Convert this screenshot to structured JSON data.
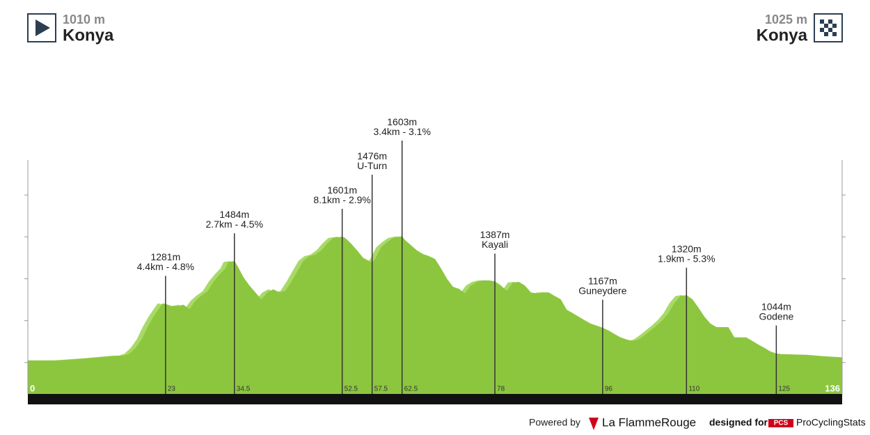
{
  "header": {
    "start": {
      "altitude": "1010 m",
      "place": "Konya"
    },
    "finish": {
      "altitude": "1025 m",
      "place": "Konya"
    }
  },
  "footer": {
    "powered_by": "Powered by",
    "brand": "La FlammeRouge",
    "designed_for": "designed for",
    "pcs_logo": "PCS",
    "pcs": "ProCyclingStats"
  },
  "chart_data": {
    "type": "area",
    "x": [
      0,
      5,
      10,
      15,
      16,
      17,
      18,
      19,
      20,
      21,
      22.5,
      23,
      24,
      25,
      26,
      27,
      28,
      29,
      30,
      31,
      32,
      33,
      33.5,
      34.5,
      35,
      36,
      37,
      38,
      39,
      40,
      41,
      42,
      43,
      44,
      45,
      46,
      47,
      48,
      49,
      50,
      51,
      52.5,
      53,
      54,
      55,
      56,
      57,
      57.5,
      58,
      59,
      60,
      61,
      62,
      62.5,
      63,
      64,
      65,
      66,
      67,
      68,
      69,
      70,
      71,
      72,
      73,
      74,
      75,
      76,
      77,
      78,
      79,
      80,
      81,
      82,
      83,
      84,
      85,
      86,
      87,
      88,
      89,
      90,
      91,
      92,
      93,
      94,
      95,
      96,
      97,
      98,
      99,
      100,
      101,
      102,
      103,
      104,
      105,
      106,
      107,
      108,
      109,
      110,
      111,
      112,
      113,
      114,
      115,
      116,
      117,
      118,
      119,
      120,
      121,
      122,
      123,
      124,
      125,
      126,
      130,
      133,
      136
    ],
    "values": [
      1010,
      1010,
      1020,
      1033,
      1033,
      1043,
      1070,
      1110,
      1170,
      1220,
      1282,
      1280,
      1270,
      1270,
      1276,
      1255,
      1295,
      1320,
      1340,
      1385,
      1420,
      1450,
      1480,
      1485,
      1462,
      1408,
      1368,
      1335,
      1302,
      1335,
      1350,
      1335,
      1342,
      1385,
      1435,
      1485,
      1508,
      1515,
      1535,
      1568,
      1595,
      1601,
      1595,
      1568,
      1535,
      1500,
      1485,
      1476,
      1495,
      1550,
      1575,
      1595,
      1601,
      1603,
      1585,
      1560,
      1535,
      1518,
      1508,
      1495,
      1450,
      1400,
      1362,
      1352,
      1330,
      1368,
      1385,
      1392,
      1392,
      1388,
      1368,
      1342,
      1382,
      1385,
      1368,
      1335,
      1330,
      1335,
      1335,
      1318,
      1302,
      1252,
      1236,
      1219,
      1202,
      1186,
      1176,
      1166,
      1153,
      1136,
      1120,
      1110,
      1103,
      1110,
      1130,
      1153,
      1176,
      1202,
      1236,
      1285,
      1318,
      1322,
      1302,
      1262,
      1219,
      1186,
      1169,
      1169,
      1169,
      1120,
      1120,
      1120,
      1103,
      1086,
      1070,
      1053,
      1043,
      1040,
      1037,
      1030,
      1025
    ],
    "color": "#8cc63f",
    "shade_color": "#a8da68",
    "xlim": [
      0,
      136
    ],
    "ylim": [
      850,
      2000
    ],
    "xticks": [
      0,
      23,
      34.5,
      52.5,
      57.5,
      62.5,
      78,
      96,
      110,
      125,
      136
    ],
    "yticks": [
      1000,
      1200,
      1400,
      1600,
      1800
    ],
    "annotations": [
      {
        "x": 23,
        "value": 1281,
        "value_label": "1281m",
        "note": "4.4km - 4.8%"
      },
      {
        "x": 34.5,
        "value": 1484,
        "value_label": "1484m",
        "note": "2.7km - 4.5%"
      },
      {
        "x": 52.5,
        "value": 1601,
        "value_label": "1601m",
        "note": "8.1km - 2.9%"
      },
      {
        "x": 57.5,
        "value": 1476,
        "value_label": "1476m",
        "note": "U-Turn"
      },
      {
        "x": 62.5,
        "value": 1603,
        "value_label": "1603m",
        "note": "3.4km - 3.1%"
      },
      {
        "x": 78,
        "value": 1387,
        "value_label": "1387m",
        "note": "Kayali"
      },
      {
        "x": 96,
        "value": 1167,
        "value_label": "1167m",
        "note": "Guneydere"
      },
      {
        "x": 110,
        "value": 1320,
        "value_label": "1320m",
        "note": "1.9km - 5.3%"
      },
      {
        "x": 125,
        "value": 1044,
        "value_label": "1044m",
        "note": "Godene"
      }
    ]
  }
}
